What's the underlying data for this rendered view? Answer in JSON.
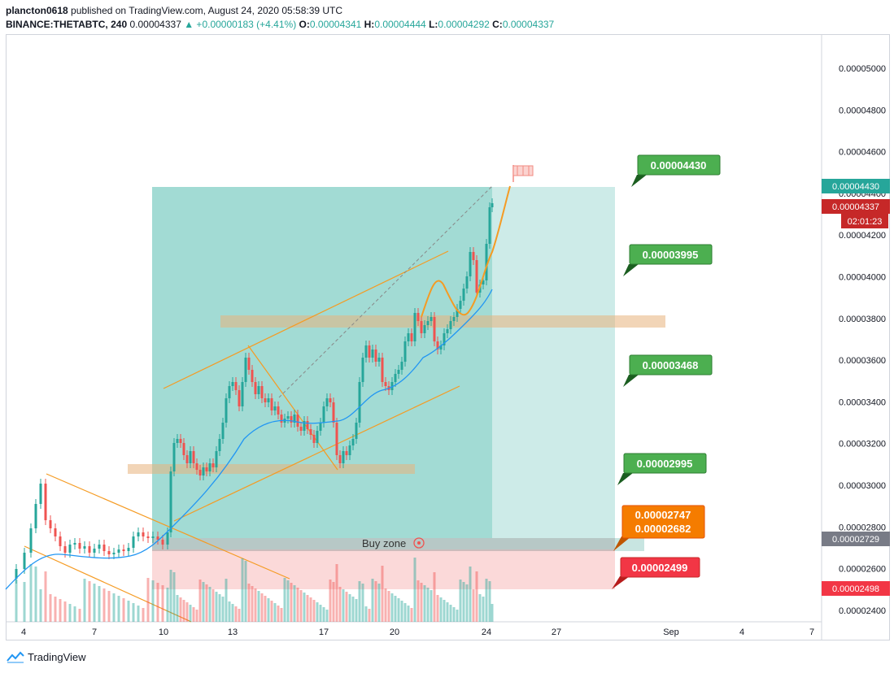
{
  "header": {
    "publisher": "plancton0618",
    "published_text": "published on TradingView.com, August 24, 2020 05:58:39 UTC",
    "symbol": "BINANCE:THETABTC, 240",
    "last": "0.00004337",
    "change": "▲ +0.00000183 (+4.41%)",
    "o_label": "O:",
    "o_value": "0.00004341",
    "h_label": "H:",
    "h_value": "0.00004444",
    "l_label": "L:",
    "l_value": "0.00004292",
    "c_label": "C:",
    "c_value": "0.00004337"
  },
  "price_axis": {
    "ticks": [
      "0.00005000",
      "0.00004800",
      "0.00004600",
      "0.00004400",
      "0.00004200",
      "0.00004000",
      "0.00003800",
      "0.00003600",
      "0.00003400",
      "0.00003200",
      "0.00003000",
      "0.00002800",
      "0.00002600",
      "0.00002400"
    ],
    "tags": [
      {
        "text": "0.00004430",
        "color": "#26a69a"
      },
      {
        "text": "0.00004337",
        "color": "#c62828"
      },
      {
        "text": "02:01:23",
        "color": "#c62828"
      },
      {
        "text": "0.00002729",
        "color": "#787b86"
      },
      {
        "text": "0.00002498",
        "color": "#f23645"
      }
    ]
  },
  "time_axis": {
    "labels": [
      "4",
      "7",
      "10",
      "13",
      "17",
      "20",
      "24",
      "27",
      "Sep",
      "4",
      "7"
    ]
  },
  "annotations": {
    "targets": [
      {
        "text": "0.00004430",
        "color": "#4caf50"
      },
      {
        "text": "0.00003995",
        "color": "#4caf50"
      },
      {
        "text": "0.00003468",
        "color": "#4caf50"
      },
      {
        "text": "0.00002995",
        "color": "#4caf50"
      },
      {
        "text": "0.00002747",
        "color": "#f57c00"
      },
      {
        "text": "0.00002682",
        "color": "#f57c00"
      },
      {
        "text": "0.00002499",
        "color": "#f23645"
      }
    ],
    "buy_zone": "Buy zone"
  },
  "colors": {
    "profit_zone": "#7ecdc3",
    "loss_zone": "#f9c9c9",
    "support_band": "#e8b37c",
    "candle_up": "#26a69a",
    "candle_down": "#ef5350",
    "ema": "#2196f3",
    "trend": "#f59b23"
  },
  "footer": {
    "brand": "TradingView"
  }
}
